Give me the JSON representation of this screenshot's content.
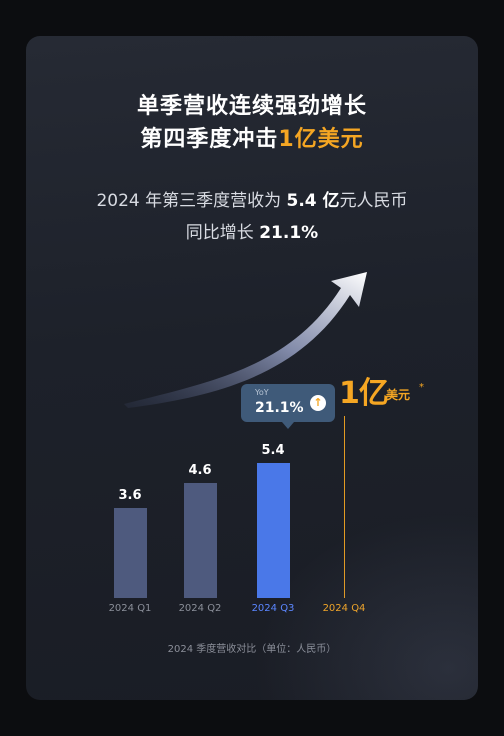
{
  "headline": {
    "line1": "单季营收连续强劲增长",
    "line2_prefix": "第四季度冲击",
    "line2_accent": "1亿美元"
  },
  "subtitle": {
    "line1_a": "2024 年第三季度营收为 ",
    "line1_value": "5.4 亿",
    "line1_b": "元人民币",
    "line2_a": "同比增长 ",
    "line2_value": "21.1%"
  },
  "callout": {
    "label": "YoY",
    "value": "21.1%",
    "icon": "up-arrow-icon"
  },
  "target": {
    "big": "1亿",
    "unit": "美元",
    "mark": "*"
  },
  "footnote": "2024 季度营收对比（单位：人民币）",
  "colors": {
    "accent": "#f5a623",
    "bar_default": "#4e5a7e",
    "bar_highlight": "#4a78e8",
    "callout_bg": "#3f5a79"
  },
  "chart_data": {
    "type": "bar",
    "categories": [
      "2024 Q1",
      "2024 Q2",
      "2024 Q3",
      "2024 Q4"
    ],
    "values": [
      3.6,
      4.6,
      5.4,
      null
    ],
    "value_labels": [
      "3.6",
      "4.6",
      "5.4",
      ""
    ],
    "highlight_index": 2,
    "target_index": 3,
    "ylim": [
      0,
      7.5
    ],
    "grid": false,
    "legend": "none"
  }
}
